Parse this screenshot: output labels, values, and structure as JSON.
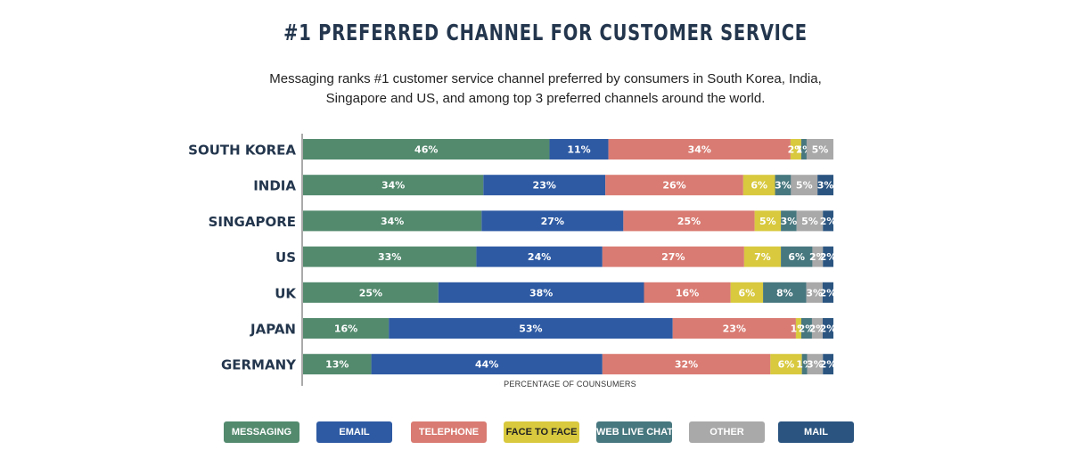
{
  "title": "#1 PREFERRED CHANNEL FOR CUSTOMER SERVICE",
  "subtitle_lines": [
    "Messaging ranks #1 customer service channel preferred by consumers in South Korea, India,",
    "Singapore and US, and among top 3 preferred channels around the world."
  ],
  "colors": {
    "MESSAGING": "#538a6e",
    "EMAIL": "#2e5aa3",
    "TELEPHONE": "#d97b72",
    "FACE TO FACE": "#d8c93e",
    "WEB LIVE CHAT": "#47777f",
    "OTHER": "#a9a9a9",
    "MAIL": "#2b5580"
  },
  "chart_data": {
    "type": "bar",
    "orientation": "horizontal",
    "stacked": true,
    "xlabel": "PERCENTAGE OF COUNSUMERS",
    "categories": [
      "SOUTH KOREA",
      "INDIA",
      "SINGAPORE",
      "US",
      "UK",
      "JAPAN",
      "GERMANY"
    ],
    "series": [
      {
        "name": "MESSAGING",
        "values": [
          46,
          34,
          34,
          33,
          25,
          16,
          13
        ]
      },
      {
        "name": "EMAIL",
        "values": [
          11,
          23,
          27,
          24,
          38,
          53,
          44
        ]
      },
      {
        "name": "TELEPHONE",
        "values": [
          34,
          26,
          25,
          27,
          16,
          23,
          32
        ]
      },
      {
        "name": "FACE TO FACE",
        "values": [
          2,
          6,
          5,
          7,
          6,
          1,
          6
        ]
      },
      {
        "name": "WEB LIVE CHAT",
        "values": [
          1,
          3,
          3,
          6,
          8,
          2,
          1
        ]
      },
      {
        "name": "OTHER",
        "values": [
          5,
          5,
          5,
          2,
          3,
          2,
          3
        ]
      },
      {
        "name": "MAIL",
        "values": [
          0,
          3,
          2,
          2,
          2,
          2,
          2
        ]
      }
    ],
    "legend_position": "bottom",
    "grid": false
  }
}
